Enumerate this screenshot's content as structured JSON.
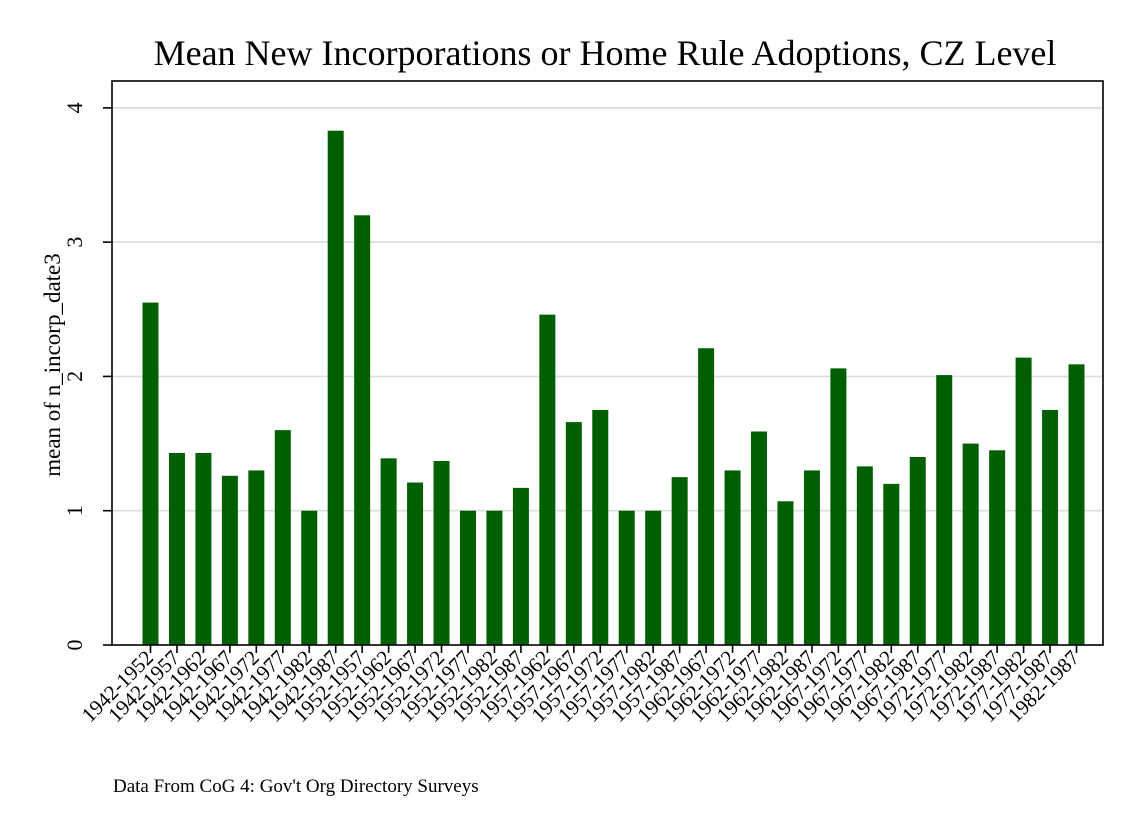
{
  "chart_data": {
    "type": "bar",
    "title": "Mean New Incorporations or Home Rule Adoptions, CZ Level",
    "xlabel": "",
    "ylabel": "mean of n_incorp_date3",
    "note": "Data From CoG 4: Gov't Org Directory Surveys",
    "ylim": [
      0,
      4.2
    ],
    "yticks": [
      0,
      1,
      2,
      3,
      4
    ],
    "grid": true,
    "bar_color": "#005f00",
    "categories": [
      "1942-1952",
      "1942-1957",
      "1942-1962",
      "1942-1967",
      "1942-1972",
      "1942-1977",
      "1942-1982",
      "1942-1987",
      "1952-1957",
      "1952-1962",
      "1952-1967",
      "1952-1972",
      "1952-1977",
      "1952-1982",
      "1952-1987",
      "1957-1962",
      "1957-1967",
      "1957-1972",
      "1957-1977",
      "1957-1982",
      "1957-1987",
      "1962-1967",
      "1962-1972",
      "1962-1977",
      "1962-1982",
      "1962-1987",
      "1967-1972",
      "1967-1977",
      "1967-1982",
      "1967-1987",
      "1972-1977",
      "1972-1982",
      "1972-1987",
      "1977-1982",
      "1977-1987",
      "1982-1987"
    ],
    "values": [
      2.55,
      1.43,
      1.43,
      1.26,
      1.3,
      1.6,
      1.0,
      3.83,
      3.2,
      1.39,
      1.21,
      1.37,
      1.0,
      1.0,
      1.17,
      2.46,
      1.66,
      1.75,
      1.0,
      1.0,
      1.25,
      2.21,
      1.3,
      1.59,
      1.07,
      1.3,
      2.06,
      1.33,
      1.2,
      1.4,
      2.01,
      1.5,
      1.45,
      2.14,
      1.75,
      2.09
    ]
  }
}
